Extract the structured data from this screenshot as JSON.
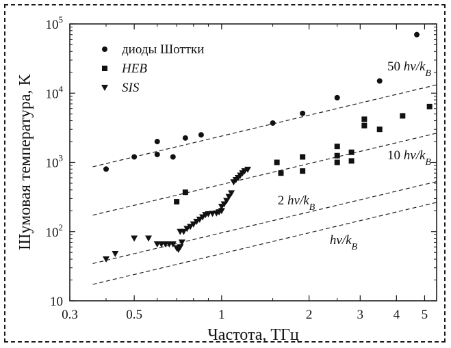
{
  "chart_data": {
    "type": "scatter",
    "x_scale": "log",
    "y_scale": "log",
    "xlim": [
      0.3,
      5.5
    ],
    "ylim": [
      10,
      100000
    ],
    "xlabel": "Частота, ТГц",
    "ylabel": "Шумовая температура, K",
    "x_ticks": [
      {
        "value": 0.3,
        "label": "0.3"
      },
      {
        "value": 0.5,
        "label": "0.5"
      },
      {
        "value": 1,
        "label": "1"
      },
      {
        "value": 2,
        "label": "2"
      },
      {
        "value": 3,
        "label": "3"
      },
      {
        "value": 4,
        "label": "4"
      },
      {
        "value": 5,
        "label": "5"
      }
    ],
    "y_ticks": [
      {
        "value": 10,
        "base": "10",
        "exp": ""
      },
      {
        "value": 100,
        "base": "10",
        "exp": "2"
      },
      {
        "value": 1000,
        "base": "10",
        "exp": "3"
      },
      {
        "value": 10000,
        "base": "10",
        "exp": "4"
      },
      {
        "value": 100000,
        "base": "10",
        "exp": "5"
      }
    ],
    "legend": {
      "placement": "top-left",
      "entries": [
        {
          "series": "schottky",
          "label": "диоды Шоттки",
          "marker": "circle",
          "italic": false
        },
        {
          "series": "heb",
          "label": "HEB",
          "marker": "square",
          "italic": true
        },
        {
          "series": "sis",
          "label": "SIS",
          "marker": "triangle-down",
          "italic": true
        }
      ]
    },
    "reference_lines": [
      {
        "multiplier": 50,
        "label_prefix": "50 ",
        "label_main": "hν/k",
        "label_sub": "B"
      },
      {
        "multiplier": 10,
        "label_prefix": "10 ",
        "label_main": "hν/k",
        "label_sub": "B"
      },
      {
        "multiplier": 2,
        "label_prefix": "2 ",
        "label_main": "hν/k",
        "label_sub": "B"
      },
      {
        "multiplier": 1,
        "label_prefix": "",
        "label_main": "hν/k",
        "label_sub": "B"
      }
    ],
    "series": [
      {
        "name": "диоды Шоттки",
        "id": "schottky",
        "marker": "circle",
        "points": [
          [
            0.4,
            800
          ],
          [
            0.5,
            1200
          ],
          [
            0.6,
            2000
          ],
          [
            0.6,
            1300
          ],
          [
            0.68,
            1200
          ],
          [
            0.75,
            2250
          ],
          [
            0.85,
            2500
          ],
          [
            1.5,
            3700
          ],
          [
            1.9,
            5100
          ],
          [
            2.5,
            8600
          ],
          [
            3.5,
            15000
          ],
          [
            4.7,
            70000
          ]
        ]
      },
      {
        "name": "HEB",
        "id": "heb",
        "marker": "square",
        "points": [
          [
            0.7,
            270
          ],
          [
            0.75,
            370
          ],
          [
            1.55,
            1000
          ],
          [
            1.6,
            700
          ],
          [
            1.9,
            1200
          ],
          [
            1.9,
            750
          ],
          [
            2.5,
            1700
          ],
          [
            2.5,
            1250
          ],
          [
            2.5,
            1000
          ],
          [
            2.8,
            1400
          ],
          [
            2.8,
            1050
          ],
          [
            3.1,
            4200
          ],
          [
            3.1,
            3400
          ],
          [
            3.5,
            3000
          ],
          [
            4.2,
            4700
          ],
          [
            5.2,
            6400
          ]
        ]
      },
      {
        "name": "SIS",
        "id": "sis",
        "marker": "triangle-down",
        "points": [
          [
            0.4,
            40
          ],
          [
            0.43,
            48
          ],
          [
            0.5,
            80
          ],
          [
            0.56,
            80
          ],
          [
            0.6,
            66
          ],
          [
            0.62,
            66
          ],
          [
            0.64,
            66
          ],
          [
            0.66,
            66
          ],
          [
            0.68,
            66
          ],
          [
            0.7,
            58
          ],
          [
            0.71,
            55
          ],
          [
            0.72,
            60
          ],
          [
            0.73,
            70
          ],
          [
            0.72,
            100
          ],
          [
            0.74,
            100
          ],
          [
            0.76,
            110
          ],
          [
            0.78,
            118
          ],
          [
            0.8,
            128
          ],
          [
            0.82,
            140
          ],
          [
            0.84,
            150
          ],
          [
            0.86,
            162
          ],
          [
            0.88,
            175
          ],
          [
            0.9,
            180
          ],
          [
            0.93,
            182
          ],
          [
            0.96,
            185
          ],
          [
            0.98,
            192
          ],
          [
            1.0,
            200
          ],
          [
            1.0,
            230
          ],
          [
            1.02,
            250
          ],
          [
            1.04,
            280
          ],
          [
            1.06,
            320
          ],
          [
            1.08,
            360
          ],
          [
            1.1,
            520
          ],
          [
            1.12,
            560
          ],
          [
            1.14,
            600
          ],
          [
            1.16,
            650
          ],
          [
            1.18,
            700
          ],
          [
            1.2,
            750
          ],
          [
            1.23,
            790
          ]
        ]
      }
    ]
  }
}
